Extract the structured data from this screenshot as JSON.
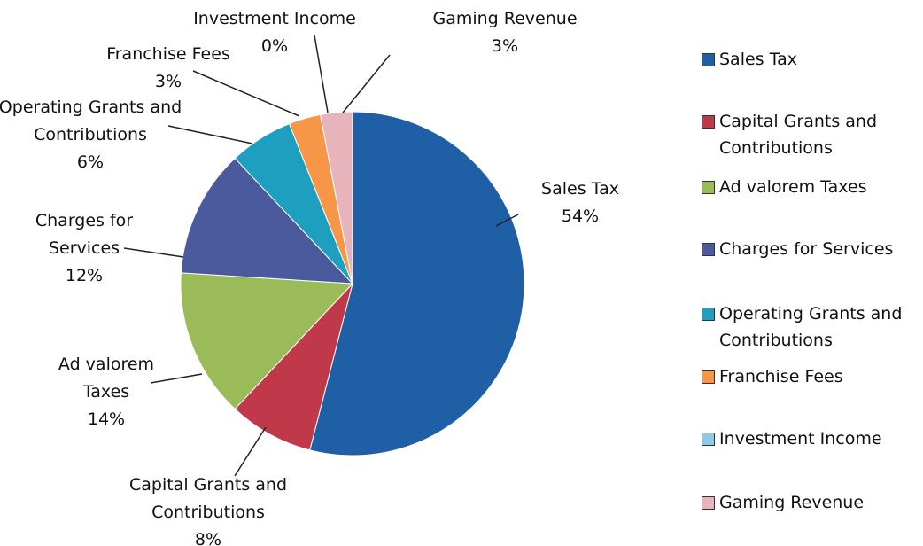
{
  "chart_data": {
    "type": "pie",
    "categories": [
      "Sales Tax",
      "Capital Grants and Contributions",
      "Ad valorem Taxes",
      "Charges for Services",
      "Operating Grants and Contributions",
      "Franchise Fees",
      "Investment Income",
      "Gaming Revenue"
    ],
    "values": [
      54,
      8,
      14,
      12,
      6,
      3,
      0,
      3
    ],
    "value_labels": [
      "54%",
      "8%",
      "14%",
      "12%",
      "6%",
      "3%",
      "0%",
      "3%"
    ],
    "colors": [
      "#1f5fa6",
      "#c0394a",
      "#9bbb59",
      "#4a5a9c",
      "#1f9fbf",
      "#f79646",
      "#8fc8e8",
      "#e8b4bc"
    ],
    "legend": "right"
  }
}
